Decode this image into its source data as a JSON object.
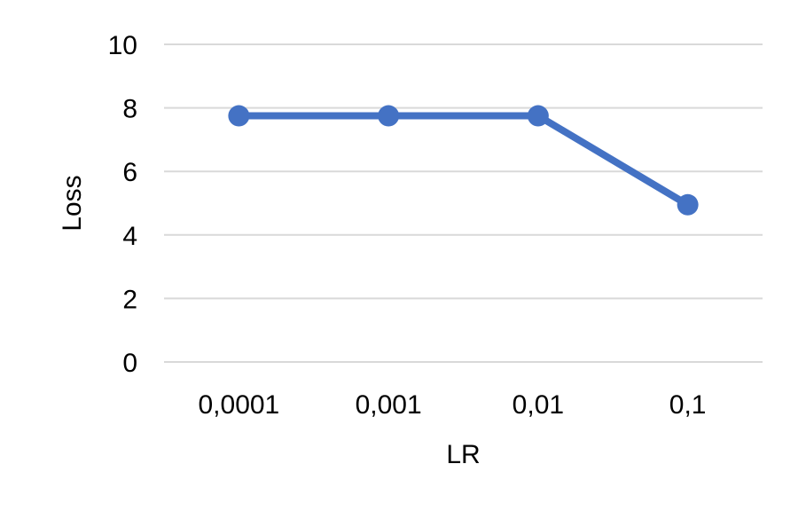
{
  "chart_data": {
    "type": "line",
    "categories": [
      "0,0001",
      "0,001",
      "0,01",
      "0,1"
    ],
    "series": [
      {
        "values": [
          7.75,
          7.75,
          7.75,
          4.95
        ],
        "color": "#4472C4"
      }
    ],
    "title": "",
    "xlabel": "LR",
    "ylabel": "Loss",
    "ylim": [
      0,
      10
    ],
    "yticks": [
      "0",
      "2",
      "4",
      "6",
      "8",
      "10"
    ],
    "grid": true,
    "legend": "none",
    "gridline_color": "#D9D9D9"
  }
}
